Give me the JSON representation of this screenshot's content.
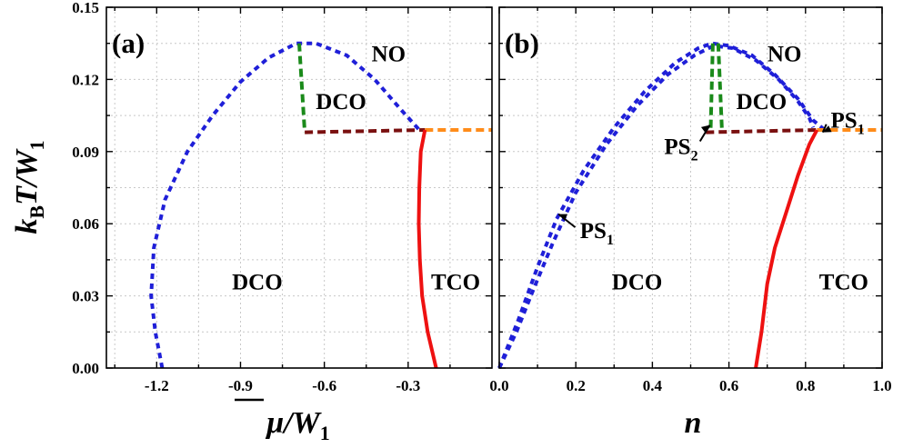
{
  "chart_data": [
    {
      "type": "line",
      "panel_label": "(a)",
      "xlabel": "μ̄/W1",
      "ylabel": "kBT/W1",
      "xlim": [
        -1.38,
        0.0
      ],
      "ylim": [
        0.0,
        0.15
      ],
      "x_ticks": [
        "-1.2",
        "-0.9",
        "-0.6",
        "-0.3"
      ],
      "y_ticks": [
        "0.00",
        "0.03",
        "0.06",
        "0.09",
        "0.12",
        "0.15"
      ],
      "grid": true,
      "series": [
        {
          "color": "#1f1fd8",
          "style": "short-dash",
          "points": [
            [
              -1.18,
              0.0
            ],
            [
              -1.205,
              0.015
            ],
            [
              -1.22,
              0.03
            ],
            [
              -1.21,
              0.05
            ],
            [
              -1.17,
              0.07
            ],
            [
              -1.09,
              0.09
            ],
            [
              -1.0,
              0.105
            ],
            [
              -0.9,
              0.119
            ],
            [
              -0.8,
              0.129
            ],
            [
              -0.7,
              0.135
            ],
            [
              -0.63,
              0.135
            ],
            [
              -0.52,
              0.13
            ],
            [
              -0.42,
              0.12
            ],
            [
              -0.33,
              0.108
            ],
            [
              -0.26,
              0.099
            ]
          ]
        },
        {
          "color": "#1a8a1a",
          "style": "dash",
          "points": [
            [
              -0.69,
              0.135
            ],
            [
              -0.67,
              0.098
            ]
          ]
        },
        {
          "color": "#7a1010",
          "style": "dash",
          "points": [
            [
              -0.67,
              0.098
            ],
            [
              -0.24,
              0.099
            ]
          ]
        },
        {
          "color": "#ff8c1a",
          "style": "dash",
          "points": [
            [
              -0.24,
              0.099
            ],
            [
              0.0,
              0.099
            ]
          ]
        },
        {
          "color": "#ee1111",
          "style": "solid",
          "points": [
            [
              -0.24,
              0.099
            ],
            [
              -0.255,
              0.09
            ],
            [
              -0.26,
              0.075
            ],
            [
              -0.262,
              0.06
            ],
            [
              -0.258,
              0.045
            ],
            [
              -0.25,
              0.03
            ],
            [
              -0.23,
              0.015
            ],
            [
              -0.2,
              0.0
            ]
          ]
        }
      ],
      "annotations": [
        {
          "text": "NO",
          "x": -0.37,
          "y": 0.131
        },
        {
          "text": "DCO",
          "x": -0.54,
          "y": 0.111
        },
        {
          "text": "DCO",
          "x": -0.84,
          "y": 0.036
        },
        {
          "text": "TCO",
          "x": -0.13,
          "y": 0.036
        }
      ]
    },
    {
      "type": "line",
      "panel_label": "(b)",
      "xlabel": "n",
      "ylabel": "",
      "xlim": [
        0.0,
        1.0
      ],
      "ylim": [
        0.0,
        0.15
      ],
      "x_ticks": [
        "0.0",
        "0.2",
        "0.4",
        "0.6",
        "0.8",
        "1.0"
      ],
      "y_ticks": [],
      "grid": true,
      "series": [
        {
          "color": "#1f1fd8",
          "style": "short-dash",
          "points": [
            [
              0.0,
              0.0
            ],
            [
              0.05,
              0.02
            ],
            [
              0.1,
              0.042
            ],
            [
              0.15,
              0.062
            ],
            [
              0.22,
              0.082
            ],
            [
              0.3,
              0.1
            ],
            [
              0.38,
              0.115
            ],
            [
              0.46,
              0.127
            ],
            [
              0.52,
              0.133
            ],
            [
              0.555,
              0.135
            ],
            [
              0.6,
              0.134
            ],
            [
              0.66,
              0.13
            ],
            [
              0.72,
              0.122
            ],
            [
              0.78,
              0.112
            ],
            [
              0.82,
              0.103
            ],
            [
              0.85,
              0.099
            ]
          ]
        },
        {
          "color": "#1f1fd8",
          "style": "short-dash",
          "points": [
            [
              0.0,
              0.0
            ],
            [
              0.045,
              0.015
            ],
            [
              0.09,
              0.033
            ],
            [
              0.14,
              0.052
            ],
            [
              0.2,
              0.073
            ],
            [
              0.28,
              0.093
            ],
            [
              0.36,
              0.109
            ],
            [
              0.44,
              0.122
            ],
            [
              0.51,
              0.13
            ],
            [
              0.56,
              0.134
            ],
            [
              0.61,
              0.133
            ],
            [
              0.67,
              0.128
            ],
            [
              0.73,
              0.12
            ],
            [
              0.78,
              0.111
            ],
            [
              0.81,
              0.104
            ],
            [
              0.82,
              0.1
            ]
          ]
        },
        {
          "color": "#1a8a1a",
          "style": "dash",
          "points": [
            [
              0.572,
              0.135
            ],
            [
              0.582,
              0.098
            ]
          ]
        },
        {
          "color": "#1a8a1a",
          "style": "dash",
          "points": [
            [
              0.558,
              0.135
            ],
            [
              0.552,
              0.098
            ]
          ]
        },
        {
          "color": "#7a1010",
          "style": "dash",
          "points": [
            [
              0.54,
              0.098
            ],
            [
              0.83,
              0.099
            ]
          ]
        },
        {
          "color": "#ff8c1a",
          "style": "dash",
          "points": [
            [
              0.83,
              0.099
            ],
            [
              1.0,
              0.099
            ]
          ]
        },
        {
          "color": "#ee1111",
          "style": "solid",
          "points": [
            [
              0.67,
              0.0
            ],
            [
              0.685,
              0.015
            ],
            [
              0.7,
              0.035
            ],
            [
              0.72,
              0.05
            ],
            [
              0.75,
              0.065
            ],
            [
              0.78,
              0.08
            ],
            [
              0.81,
              0.093
            ],
            [
              0.83,
              0.099
            ]
          ]
        }
      ],
      "annotations": [
        {
          "text": "NO",
          "x": 0.745,
          "y": 0.131
        },
        {
          "text": "DCO",
          "x": 0.685,
          "y": 0.111
        },
        {
          "text": "DCO",
          "x": 0.36,
          "y": 0.036
        },
        {
          "text": "TCO",
          "x": 0.9,
          "y": 0.036
        }
      ],
      "arrow_labels": [
        {
          "text": "PS",
          "sub": "1",
          "label_at": [
            0.255,
            0.057
          ],
          "arrow_to": [
            0.155,
            0.064
          ]
        },
        {
          "text": "PS",
          "sub": "2",
          "label_at": [
            0.475,
            0.092
          ],
          "arrow_to": [
            0.55,
            0.101
          ]
        },
        {
          "text": "PS",
          "sub": "1",
          "label_at": [
            0.91,
            0.103
          ],
          "arrow_to": [
            0.845,
            0.098
          ]
        }
      ]
    }
  ]
}
